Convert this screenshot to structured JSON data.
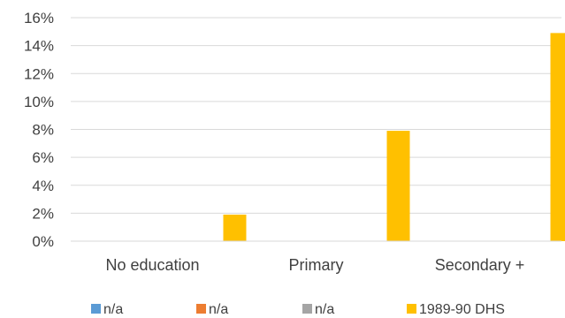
{
  "chart_data": {
    "type": "bar",
    "categories": [
      "No education",
      "Primary",
      "Secondary +"
    ],
    "series": [
      {
        "name": "n/a",
        "color": "#5B9BD5",
        "values": [
          null,
          null,
          null
        ]
      },
      {
        "name": "n/a",
        "color": "#ED7D31",
        "values": [
          null,
          null,
          null
        ]
      },
      {
        "name": "n/a",
        "color": "#A5A5A5",
        "values": [
          null,
          null,
          null
        ]
      },
      {
        "name": "1989-90 DHS",
        "color": "#FFC000",
        "values": [
          1.9,
          7.9,
          14.9
        ]
      }
    ],
    "y_ticks": [
      "0%",
      "2%",
      "4%",
      "6%",
      "8%",
      "10%",
      "12%",
      "14%",
      "16%"
    ],
    "ylim": [
      0,
      16
    ],
    "y_unit": "%",
    "grid": true,
    "legend_position": "bottom",
    "title": "",
    "xlabel": "",
    "ylabel": ""
  }
}
